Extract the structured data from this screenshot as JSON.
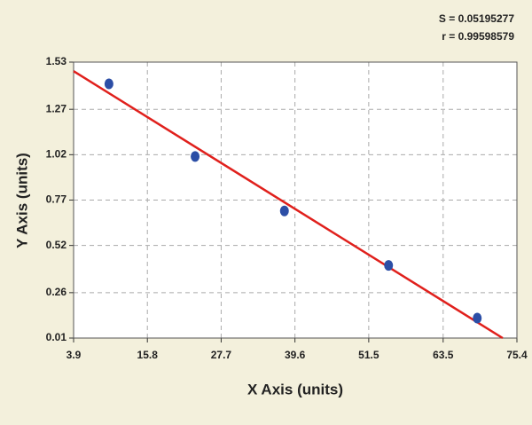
{
  "chart_data": {
    "type": "scatter",
    "annotations": [
      "S = 0.05195277",
      "r = 0.99598579"
    ],
    "x_label": "X Axis (units)",
    "y_label": "Y Axis (units)",
    "x": [
      9.6,
      23.5,
      37.9,
      54.7,
      69.0
    ],
    "values": [
      1.41,
      1.01,
      0.71,
      0.41,
      0.12
    ],
    "color": "#2c4ea6",
    "fit_line": {
      "x": [
        3.9,
        73.1
      ],
      "values": [
        1.48,
        0.01
      ],
      "color": "#e0201c"
    },
    "xlim": [
      3.9,
      75.4
    ],
    "xticks": [
      3.9,
      15.8,
      27.7,
      39.6,
      51.5,
      63.5,
      75.4
    ],
    "ylim": [
      0.01,
      1.53
    ],
    "yticks": [
      0.01,
      0.26,
      0.52,
      0.77,
      1.02,
      1.27,
      1.53
    ],
    "grid": true
  }
}
